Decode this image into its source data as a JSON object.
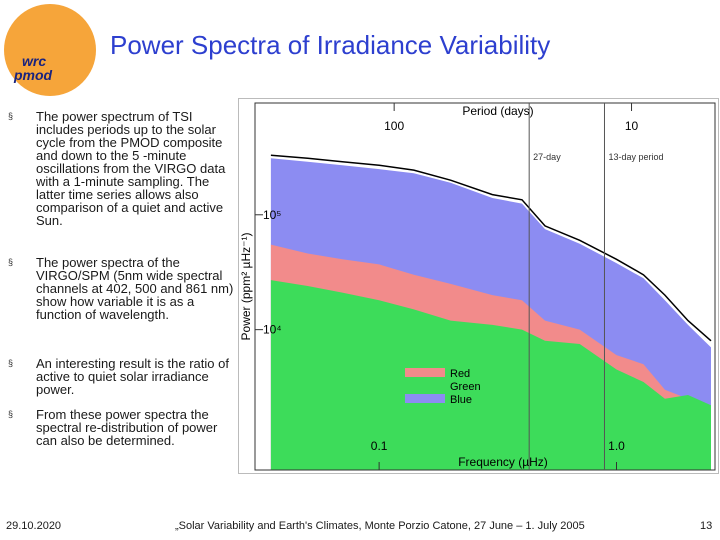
{
  "slide": {
    "title": "Power Spectra of Irradiance Variability",
    "logo": {
      "top": "wrc",
      "bottom": "pmod"
    },
    "bullets": [
      "The power spectrum of TSI includes periods up to the solar cycle from the PMOD composite and down to the 5 -minute oscillations from the VIRGO data with a 1-minute sampling. The latter time series allows also comparison of a quiet and active Sun.",
      "The power spectra of the VIRGO/SPM (5nm wide spectral channels at 402, 500 and 861 nm) show how variable it is as a function of wavelength.",
      "An interesting result is the ratio of active to quiet solar irradiance power.",
      "From these power spectra the spectral re-distribution of power can also be determined."
    ],
    "footer": {
      "date": "29.10.2020",
      "event": "„Solar Variability and Earth's Climates, Monte Porzio Catone, 27 June – 1. July 2005",
      "page": "13"
    }
  },
  "chart_data": {
    "type": "area",
    "x_label": "Frequency (µHz)",
    "y_label": "Power (ppm² µHz⁻¹)",
    "x2_label": "Period (days)",
    "x": [
      0.035,
      0.05,
      0.07,
      0.1,
      0.14,
      0.2,
      0.3,
      0.4,
      0.5,
      0.7,
      1.0,
      1.3,
      1.6,
      2.0,
      2.5
    ],
    "series": [
      {
        "name": "Red",
        "color": "#f28b8b",
        "values": [
          55000,
          46000,
          41000,
          37000,
          30000,
          25000,
          20000,
          18000,
          12000,
          10000,
          6000,
          5000,
          3000,
          2500,
          2000
        ]
      },
      {
        "name": "Green",
        "color": "#3ddc5a",
        "values": [
          27000,
          24000,
          21000,
          18000,
          15000,
          12000,
          11000,
          10000,
          8000,
          7500,
          4500,
          3500,
          2500,
          2700,
          2200
        ]
      },
      {
        "name": "Blue",
        "color": "#8c8cf2",
        "values": [
          310000,
          290000,
          270000,
          250000,
          230000,
          190000,
          140000,
          125000,
          75000,
          56000,
          38000,
          28000,
          18000,
          11000,
          7000
        ]
      },
      {
        "color": "#000000",
        "values": [
          330000,
          310000,
          290000,
          270000,
          245000,
          200000,
          150000,
          135000,
          80000,
          60000,
          41000,
          30000,
          20000,
          12000,
          8000
        ]
      }
    ],
    "xlim": [
      0.03,
      2.6
    ],
    "ylim": [
      600,
      940000
    ],
    "log_x": true,
    "log_y": true,
    "xticks": [
      0.1,
      {
        "value": 1,
        "label": "1.0"
      }
    ],
    "yticks": [
      {
        "value": 10000,
        "label": "10⁴"
      },
      {
        "value": 100000,
        "label": "10⁵"
      }
    ],
    "x2ticks": [
      {
        "value": 0.1157,
        "label": "100"
      },
      {
        "value": 1.157,
        "label": "10"
      }
    ],
    "annotations": [
      {
        "text": "27-day",
        "x": 0.4287
      },
      {
        "text": "13-day period",
        "x": 0.89
      }
    ]
  }
}
